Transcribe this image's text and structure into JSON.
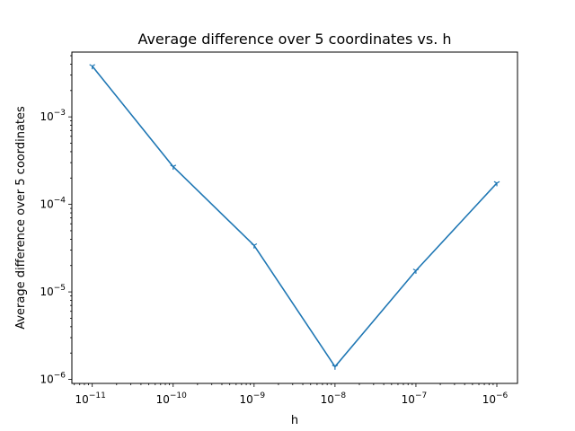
{
  "chart_data": {
    "type": "line",
    "title": "Average difference over 5 coordinates vs. h",
    "xlabel": "h",
    "ylabel": "Average difference over 5 coordinates",
    "xscale": "log",
    "yscale": "log",
    "xlim": [
      5.6e-12,
      1.8e-06
    ],
    "ylim": [
      9e-07,
      0.0055
    ],
    "grid": false,
    "marker": "tri_down",
    "colors": {
      "line": "#1f77b4"
    },
    "x_ticks": [
      {
        "base": "10",
        "exp": "−11",
        "value": 1e-11
      },
      {
        "base": "10",
        "exp": "−10",
        "value": 1e-10
      },
      {
        "base": "10",
        "exp": "−9",
        "value": 1e-09
      },
      {
        "base": "10",
        "exp": "−8",
        "value": 1e-08
      },
      {
        "base": "10",
        "exp": "−7",
        "value": 1e-07
      },
      {
        "base": "10",
        "exp": "−6",
        "value": 1e-06
      }
    ],
    "y_ticks": [
      {
        "base": "10",
        "exp": "−6",
        "value": 1e-06
      },
      {
        "base": "10",
        "exp": "−5",
        "value": 1e-05
      },
      {
        "base": "10",
        "exp": "−4",
        "value": 0.0001
      },
      {
        "base": "10",
        "exp": "−3",
        "value": 0.001
      }
    ],
    "series": [
      {
        "x": [
          1e-11,
          1e-10,
          1e-09,
          1e-08,
          1e-07,
          1e-06
        ],
        "values": [
          0.0038,
          0.00027,
          3.4e-05,
          1.4e-06,
          1.75e-05,
          0.000175
        ]
      }
    ]
  }
}
